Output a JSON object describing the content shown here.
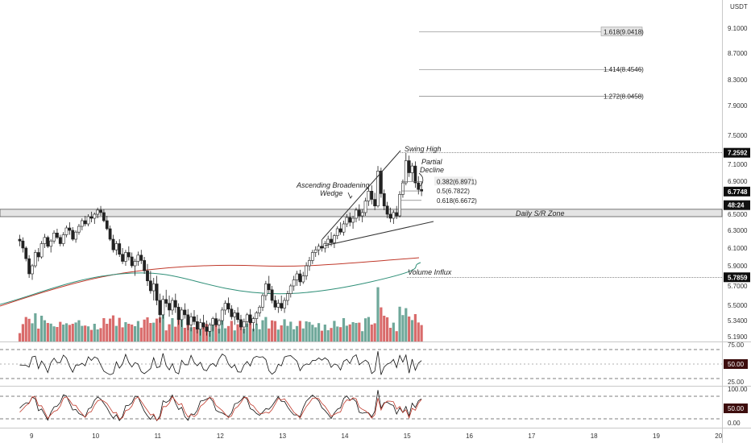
{
  "chart_data": {
    "type": "candlestick",
    "currency": "USDT",
    "price_axis_ticks": [
      "9.1000",
      "8.7000",
      "8.3000",
      "7.9000",
      "7.5000",
      "7.1000",
      "6.9000",
      "6.5000",
      "6.3000",
      "6.1000",
      "5.9000",
      "5.7000",
      "5.5000",
      "5.3400",
      "5.1900"
    ],
    "price_tick_values": [
      9.1,
      8.7,
      8.3,
      7.9,
      7.5,
      7.1,
      6.9,
      6.5,
      6.3,
      6.1,
      5.9,
      5.7,
      5.5,
      5.34,
      5.19
    ],
    "price_badges": [
      {
        "text": "7.2592",
        "value": 7.2592
      },
      {
        "text": "6.7748",
        "value": 6.7748
      },
      {
        "text": "48:24",
        "value": 6.61
      },
      {
        "text": "5.7859",
        "value": 5.7859
      }
    ],
    "date_ticks": [
      "9",
      "10",
      "11",
      "12",
      "13",
      "14",
      "15",
      "16",
      "17",
      "18",
      "19",
      "20"
    ],
    "date_tick_positions": [
      9,
      10,
      11,
      12,
      13,
      14,
      15,
      16,
      17,
      18,
      19,
      20
    ],
    "fib_levels": [
      {
        "label": "1.618(9.0418)",
        "value": 9.0418
      },
      {
        "label": "1.414(8.4546)",
        "value": 8.4546
      },
      {
        "label": "1.272(8.0458)",
        "value": 8.0458
      },
      {
        "label": "0.382(6.8971)",
        "value": 6.8971
      },
      {
        "label": "0.5(6.7822)",
        "value": 6.7822
      },
      {
        "label": "0.618(6.6672)",
        "value": 6.6672
      }
    ],
    "horizontal_lines": [
      {
        "name": "Swing High",
        "value": 7.2592
      },
      {
        "name": "Volume Influx",
        "value": 5.7859
      }
    ],
    "sr_zone": {
      "label": "Daily S/R Zone",
      "low": 6.47,
      "high": 6.56
    },
    "annotations": [
      "Swing High",
      "Partial Decline",
      "Ascending Broadening Wedge",
      "Daily S/R Zone",
      "Volume Influx"
    ],
    "candles": [
      [
        8.8,
        6.2,
        6.25,
        6.12,
        6.18
      ],
      [
        8.85,
        6.18,
        6.22,
        6.05,
        6.1
      ],
      [
        8.9,
        6.1,
        6.12,
        5.95,
        5.98
      ],
      [
        8.95,
        5.98,
        6.02,
        5.78,
        5.82
      ],
      [
        9.0,
        5.82,
        5.92,
        5.76,
        5.9
      ],
      [
        9.05,
        5.9,
        6.08,
        5.88,
        6.05
      ],
      [
        9.1,
        6.05,
        6.1,
        5.95,
        6.0
      ],
      [
        9.15,
        6.0,
        6.18,
        5.98,
        6.15
      ],
      [
        9.2,
        6.15,
        6.26,
        6.1,
        6.22
      ],
      [
        9.25,
        6.22,
        6.24,
        6.1,
        6.12
      ],
      [
        9.3,
        6.12,
        6.2,
        6.05,
        6.18
      ],
      [
        9.35,
        6.18,
        6.3,
        6.15,
        6.27
      ],
      [
        9.4,
        6.27,
        6.32,
        6.2,
        6.22
      ],
      [
        9.45,
        6.22,
        6.25,
        6.12,
        6.15
      ],
      [
        9.5,
        6.15,
        6.28,
        6.12,
        6.25
      ],
      [
        9.55,
        6.25,
        6.36,
        6.22,
        6.33
      ],
      [
        9.6,
        6.33,
        6.4,
        6.25,
        6.3
      ],
      [
        9.65,
        6.3,
        6.34,
        6.18,
        6.2
      ],
      [
        9.7,
        6.2,
        6.3,
        6.16,
        6.28
      ],
      [
        9.75,
        6.28,
        6.38,
        6.25,
        6.35
      ],
      [
        9.8,
        6.35,
        6.45,
        6.3,
        6.42
      ],
      [
        9.85,
        6.42,
        6.48,
        6.35,
        6.38
      ],
      [
        9.9,
        6.38,
        6.5,
        6.35,
        6.47
      ],
      [
        9.95,
        6.47,
        6.53,
        6.4,
        6.45
      ],
      [
        10.0,
        6.45,
        6.52,
        6.38,
        6.5
      ],
      [
        10.05,
        6.5,
        6.58,
        6.45,
        6.55
      ],
      [
        10.1,
        6.55,
        6.6,
        6.48,
        6.52
      ],
      [
        10.15,
        6.52,
        6.56,
        6.4,
        6.42
      ],
      [
        10.2,
        6.42,
        6.48,
        6.3,
        6.32
      ],
      [
        10.25,
        6.32,
        6.36,
        6.18,
        6.2
      ],
      [
        10.3,
        6.2,
        6.25,
        6.05,
        6.08
      ],
      [
        10.35,
        6.08,
        6.18,
        6.02,
        6.15
      ],
      [
        10.4,
        6.15,
        6.2,
        6.0,
        6.03
      ],
      [
        10.45,
        6.03,
        6.1,
        5.92,
        5.95
      ],
      [
        10.5,
        5.95,
        6.08,
        5.9,
        6.05
      ],
      [
        10.55,
        6.05,
        6.12,
        5.96,
        6.0
      ],
      [
        10.6,
        6.0,
        6.05,
        5.88,
        5.9
      ],
      [
        10.65,
        5.9,
        5.98,
        5.8,
        5.95
      ],
      [
        10.7,
        5.95,
        6.06,
        5.9,
        6.02
      ],
      [
        10.75,
        6.02,
        6.08,
        5.92,
        5.96
      ],
      [
        10.8,
        5.96,
        6.0,
        5.82,
        5.85
      ],
      [
        10.85,
        5.85,
        5.92,
        5.7,
        5.75
      ],
      [
        10.9,
        5.75,
        5.85,
        5.62,
        5.65
      ],
      [
        10.95,
        5.65,
        5.78,
        5.55,
        5.72
      ],
      [
        11.0,
        5.72,
        5.8,
        5.5,
        5.55
      ],
      [
        11.05,
        5.55,
        5.62,
        5.32,
        5.4
      ],
      [
        11.1,
        5.4,
        5.6,
        5.36,
        5.56
      ],
      [
        11.15,
        5.56,
        5.66,
        5.48,
        5.52
      ],
      [
        11.2,
        5.52,
        5.6,
        5.38,
        5.45
      ],
      [
        11.25,
        5.45,
        5.58,
        5.4,
        5.55
      ],
      [
        11.3,
        5.55,
        5.62,
        5.42,
        5.48
      ],
      [
        11.35,
        5.48,
        5.52,
        5.3,
        5.35
      ],
      [
        11.4,
        5.35,
        5.48,
        5.28,
        5.45
      ],
      [
        11.45,
        5.45,
        5.52,
        5.36,
        5.4
      ],
      [
        11.5,
        5.4,
        5.46,
        5.25,
        5.3
      ],
      [
        11.55,
        5.3,
        5.42,
        5.24,
        5.38
      ],
      [
        11.6,
        5.38,
        5.45,
        5.3,
        5.33
      ],
      [
        11.65,
        5.33,
        5.4,
        5.22,
        5.26
      ],
      [
        11.7,
        5.26,
        5.36,
        5.2,
        5.32
      ],
      [
        11.75,
        5.32,
        5.4,
        5.26,
        5.28
      ],
      [
        11.8,
        5.28,
        5.34,
        5.2,
        5.24
      ],
      [
        11.85,
        5.24,
        5.32,
        5.19,
        5.3
      ],
      [
        11.9,
        5.3,
        5.38,
        5.24,
        5.36
      ],
      [
        11.95,
        5.36,
        5.42,
        5.28,
        5.3
      ],
      [
        12.0,
        5.3,
        5.36,
        5.22,
        5.34
      ],
      [
        12.05,
        5.34,
        5.48,
        5.3,
        5.45
      ],
      [
        12.1,
        5.45,
        5.55,
        5.4,
        5.52
      ],
      [
        12.15,
        5.52,
        5.58,
        5.42,
        5.46
      ],
      [
        12.2,
        5.46,
        5.5,
        5.35,
        5.38
      ],
      [
        12.25,
        5.38,
        5.45,
        5.3,
        5.42
      ],
      [
        12.3,
        5.42,
        5.48,
        5.32,
        5.35
      ],
      [
        12.35,
        5.35,
        5.4,
        5.25,
        5.28
      ],
      [
        12.4,
        5.28,
        5.36,
        5.22,
        5.33
      ],
      [
        12.45,
        5.33,
        5.42,
        5.28,
        5.4
      ],
      [
        12.5,
        5.4,
        5.46,
        5.3,
        5.32
      ],
      [
        12.55,
        5.32,
        5.38,
        5.24,
        5.36
      ],
      [
        12.6,
        5.36,
        5.44,
        5.3,
        5.42
      ],
      [
        12.65,
        5.42,
        5.5,
        5.38,
        5.48
      ],
      [
        12.7,
        5.48,
        5.62,
        5.44,
        5.6
      ],
      [
        12.75,
        5.6,
        5.75,
        5.55,
        5.72
      ],
      [
        12.8,
        5.72,
        5.8,
        5.62,
        5.66
      ],
      [
        12.85,
        5.66,
        5.7,
        5.52,
        5.55
      ],
      [
        12.9,
        5.55,
        5.6,
        5.45,
        5.48
      ],
      [
        12.95,
        5.48,
        5.56,
        5.42,
        5.52
      ],
      [
        13.0,
        5.52,
        5.6,
        5.44,
        5.47
      ],
      [
        13.05,
        5.47,
        5.58,
        5.42,
        5.55
      ],
      [
        13.1,
        5.55,
        5.65,
        5.5,
        5.62
      ],
      [
        13.15,
        5.62,
        5.72,
        5.58,
        5.7
      ],
      [
        13.2,
        5.7,
        5.8,
        5.65,
        5.76
      ],
      [
        13.25,
        5.76,
        5.85,
        5.7,
        5.82
      ],
      [
        13.3,
        5.82,
        5.86,
        5.7,
        5.74
      ],
      [
        13.35,
        5.74,
        5.84,
        5.72,
        5.8
      ],
      [
        13.4,
        5.8,
        5.94,
        5.76,
        5.9
      ],
      [
        13.45,
        5.9,
        6.0,
        5.85,
        5.96
      ],
      [
        13.5,
        5.96,
        6.08,
        5.92,
        6.05
      ],
      [
        13.55,
        6.05,
        6.12,
        6.0,
        6.08
      ],
      [
        13.6,
        6.08,
        6.15,
        6.02,
        6.12
      ],
      [
        13.65,
        6.12,
        6.2,
        6.06,
        6.1
      ],
      [
        13.7,
        6.1,
        6.18,
        6.05,
        6.15
      ],
      [
        13.75,
        6.15,
        6.24,
        6.1,
        6.2
      ],
      [
        13.8,
        6.2,
        6.28,
        6.12,
        6.16
      ],
      [
        13.85,
        6.16,
        6.26,
        6.1,
        6.24
      ],
      [
        13.9,
        6.24,
        6.35,
        6.2,
        6.32
      ],
      [
        13.95,
        6.32,
        6.4,
        6.25,
        6.28
      ],
      [
        14.0,
        6.28,
        6.42,
        6.24,
        6.38
      ],
      [
        14.05,
        6.38,
        6.5,
        6.34,
        6.46
      ],
      [
        14.1,
        6.46,
        6.52,
        6.35,
        6.4
      ],
      [
        14.15,
        6.4,
        6.48,
        6.32,
        6.45
      ],
      [
        14.2,
        6.45,
        6.58,
        6.4,
        6.55
      ],
      [
        14.25,
        6.55,
        6.62,
        6.42,
        6.48
      ],
      [
        14.3,
        6.48,
        6.56,
        6.4,
        6.52
      ],
      [
        14.35,
        6.52,
        6.7,
        6.48,
        6.66
      ],
      [
        14.4,
        6.66,
        6.82,
        6.6,
        6.78
      ],
      [
        14.45,
        6.78,
        6.85,
        6.62,
        6.68
      ],
      [
        14.5,
        6.68,
        6.76,
        6.55,
        6.6
      ],
      [
        14.55,
        6.6,
        7.08,
        6.58,
        7.02
      ],
      [
        14.6,
        7.02,
        7.06,
        6.7,
        6.75
      ],
      [
        14.65,
        6.75,
        6.8,
        6.55,
        6.6
      ],
      [
        14.7,
        6.6,
        6.65,
        6.45,
        6.5
      ],
      [
        14.75,
        6.5,
        6.58,
        6.4,
        6.45
      ],
      [
        14.8,
        6.45,
        6.55,
        6.38,
        6.52
      ],
      [
        14.85,
        6.52,
        6.6,
        6.44,
        6.48
      ],
      [
        14.9,
        6.48,
        6.78,
        6.46,
        6.74
      ],
      [
        14.95,
        6.74,
        6.92,
        6.7,
        6.88
      ],
      [
        15.0,
        6.88,
        7.26,
        6.85,
        7.15
      ],
      [
        15.05,
        7.15,
        7.22,
        6.95,
        7.0
      ],
      [
        15.1,
        7.0,
        7.12,
        6.9,
        7.08
      ],
      [
        15.15,
        7.08,
        7.14,
        6.82,
        6.88
      ],
      [
        15.2,
        6.88,
        6.96,
        6.74,
        6.8
      ],
      [
        15.25,
        6.8,
        6.9,
        6.72,
        6.78
      ]
    ],
    "rsi": {
      "ticks": [
        "75.00",
        "25.00"
      ],
      "badge": "50.00"
    },
    "stoch": {
      "ticks": [
        "100.00",
        "0.00"
      ],
      "badge": "50.00"
    }
  }
}
